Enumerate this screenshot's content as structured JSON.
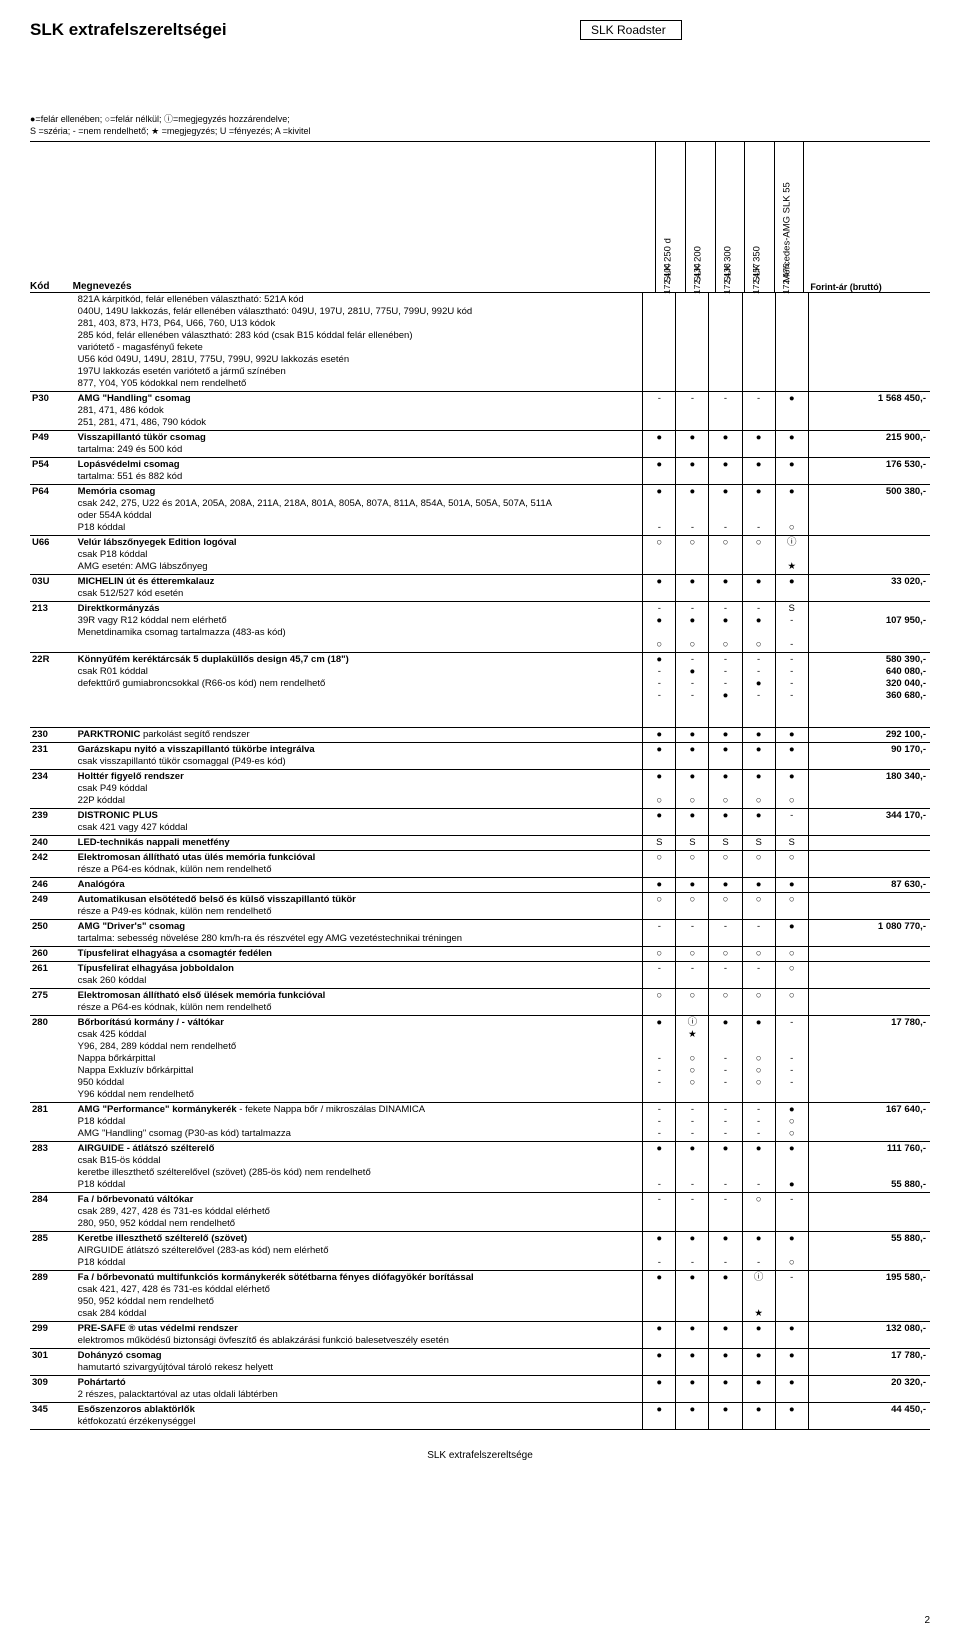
{
  "title": "SLK extrafelszereltségei",
  "model_box": "SLK Roadster",
  "legend": "●=felár ellenében;  ○=felár nélkül;  ⓘ=megjegyzés hozzárendelve;\nS =széria;  - =nem rendelhető;  ★ =megjegyzés;  U =fényezés;  A =kivitel",
  "columns": [
    {
      "code": "172.404",
      "name": "SLK 250 d"
    },
    {
      "code": "172.434",
      "name": "SLK 200"
    },
    {
      "code": "172.438",
      "name": "SLK 300"
    },
    {
      "code": "172.457",
      "name": "SLK 350"
    },
    {
      "code": "172.475",
      "name": "Mercedes-AMG SLK 55"
    }
  ],
  "price_header": "Forint-ár (bruttó)",
  "header_row": {
    "code": "Kód",
    "desc": "Megnevezés"
  },
  "footer": "SLK extrafelszereltsége",
  "page": "2",
  "rows": [
    {
      "code": "",
      "desc": "821A kárpitkód, felár ellenében választható: 521A kód\n040U, 149U lakkozás, felár ellenében választható: 049U, 197U, 281U, 775U, 799U, 992U kód\n281, 403, 873, H73, P64, U66, 760, U13 kódok\n285 kód, felár ellenében választható: 283 kód (csak B15 kóddal felár ellenében)\nvariótető - magasfényű fekete\nU56 kód  049U, 149U, 281U, 775U, 799U, 992U lakkozás esetén\n197U lakkozás esetén variótető a jármű színében\n877, Y04, Y05 kódokkal nem rendelhető",
      "sym": [
        [
          "",
          "",
          "",
          "",
          ""
        ]
      ],
      "price": ""
    },
    {
      "code": "P30",
      "desc": "<b>AMG \"Handling\" csomag</b>\n281, 471, 486 kódok\n251, 281, 471, 486, 790 kódok",
      "sym": [
        [
          "-",
          "-",
          "-",
          "-",
          "●"
        ]
      ],
      "price": "1 568 450,-"
    },
    {
      "code": "P49",
      "desc": "<b>Visszapillantó tükör csomag</b>\ntartalma: 249 és 500 kód",
      "sym": [
        [
          "●",
          "●",
          "●",
          "●",
          "●"
        ]
      ],
      "price": "215 900,-"
    },
    {
      "code": "P54",
      "desc": "<b>Lopásvédelmi csomag</b>\ntartalma: 551 és 882 kód",
      "sym": [
        [
          "●",
          "●",
          "●",
          "●",
          "●"
        ]
      ],
      "price": "176 530,-"
    },
    {
      "code": "P64",
      "desc": "<b>Memória csomag</b>\ncsak 242, 275, U22 és 201A, 205A, 208A, 211A, 218A, 801A, 805A, 807A, 811A, 854A, 501A, 505A, 507A, 511A\noder 554A kóddal\nP18 kóddal",
      "sym": [
        [
          "●",
          "●",
          "●",
          "●",
          "●"
        ],
        [
          "",
          "",
          "",
          "",
          ""
        ],
        [
          "",
          "",
          "",
          "",
          ""
        ],
        [
          "-",
          "-",
          "-",
          "-",
          "○"
        ]
      ],
      "price": "500 380,-"
    },
    {
      "code": "U66",
      "desc": "<b>Velúr lábszőnyegek Edition logóval</b>\ncsak P18 kóddal\nAMG esetén: AMG lábszőnyeg",
      "sym": [
        [
          "○",
          "○",
          "○",
          "○",
          "ⓘ"
        ],
        [
          "",
          "",
          "",
          "",
          ""
        ],
        [
          "",
          "",
          "",
          "",
          "★"
        ]
      ],
      "price": ""
    },
    {
      "code": "03U",
      "desc": "<b>MICHELIN út és étteremkalauz</b>\ncsak 512/527 kód esetén",
      "sym": [
        [
          "●",
          "●",
          "●",
          "●",
          "●"
        ]
      ],
      "price": "33 020,-"
    },
    {
      "code": "213",
      "desc": "<b>Direktkormányzás</b>\n\n39R vagy R12 kóddal nem elérhető\nMenetdinamika csomag tartalmazza (483-as kód)",
      "sym": [
        [
          "-",
          "-",
          "-",
          "-",
          "S"
        ],
        [
          "●",
          "●",
          "●",
          "●",
          "-"
        ],
        [
          "",
          "",
          "",
          "",
          ""
        ],
        [
          "○",
          "○",
          "○",
          "○",
          "-"
        ]
      ],
      "price": "\n107 950,-"
    },
    {
      "code": "22R",
      "desc": "<b>Könnyűfém keréktárcsák 5 duplaküllős design 45,7 cm (18\")</b>\n\n\n\ncsak R01 kóddal\ndefekttűrő gumiabroncsokkal (R66-os kód) nem rendelhető",
      "sym": [
        [
          "●",
          "-",
          "-",
          "-",
          "-"
        ],
        [
          "-",
          "●",
          "-",
          "-",
          "-"
        ],
        [
          "-",
          "-",
          "-",
          "●",
          "-"
        ],
        [
          "-",
          "-",
          "●",
          "-",
          "-"
        ]
      ],
      "price": "580 390,-\n640 080,-\n320 040,-\n360 680,-"
    },
    {
      "code": "230",
      "desc": "<b>PARKTRONIC</b> parkolást segítő rendszer",
      "sym": [
        [
          "●",
          "●",
          "●",
          "●",
          "●"
        ]
      ],
      "price": "292 100,-"
    },
    {
      "code": "231",
      "desc": "<b>Garázskapu nyitó a visszapillantó tükörbe integrálva</b>\ncsak visszapillantó tükör csomaggal (P49-es kód)",
      "sym": [
        [
          "●",
          "●",
          "●",
          "●",
          "●"
        ]
      ],
      "price": "90 170,-"
    },
    {
      "code": "234",
      "desc": "<b>Holttér figyelő rendszer</b>\ncsak P49 kóddal\n22P kóddal",
      "sym": [
        [
          "●",
          "●",
          "●",
          "●",
          "●"
        ],
        [
          "",
          "",
          "",
          "",
          ""
        ],
        [
          "○",
          "○",
          "○",
          "○",
          "○"
        ]
      ],
      "price": "180 340,-"
    },
    {
      "code": "239",
      "desc": "<b>DISTRONIC PLUS</b>\ncsak 421 vagy 427 kóddal",
      "sym": [
        [
          "●",
          "●",
          "●",
          "●",
          "-"
        ]
      ],
      "price": "344 170,-"
    },
    {
      "code": "240",
      "desc": "<b>LED-technikás nappali menetfény</b>",
      "sym": [
        [
          "S",
          "S",
          "S",
          "S",
          "S"
        ]
      ],
      "price": ""
    },
    {
      "code": "242",
      "desc": "<b>Elektromosan állítható utas ülés memória funkcióval</b>\nrésze a P64-es kódnak, külön nem rendelhető",
      "sym": [
        [
          "○",
          "○",
          "○",
          "○",
          "○"
        ]
      ],
      "price": ""
    },
    {
      "code": "246",
      "desc": "<b>Analógóra</b>",
      "sym": [
        [
          "●",
          "●",
          "●",
          "●",
          "●"
        ]
      ],
      "price": "87 630,-"
    },
    {
      "code": "249",
      "desc": "<b>Automatikusan elsötétedő belső és külső visszapillantó tükör</b>\nrésze a P49-es kódnak, külön nem rendelhető",
      "sym": [
        [
          "○",
          "○",
          "○",
          "○",
          "○"
        ]
      ],
      "price": ""
    },
    {
      "code": "250",
      "desc": "<b>AMG \"Driver's\" csomag</b>\ntartalma: sebesség növelése 280 km/h-ra és részvétel egy AMG vezetéstechnikai tréningen",
      "sym": [
        [
          "-",
          "-",
          "-",
          "-",
          "●"
        ]
      ],
      "price": "1 080 770,-"
    },
    {
      "code": "260",
      "desc": "<b>Típusfelirat elhagyása a csomagtér fedélen</b>",
      "sym": [
        [
          "○",
          "○",
          "○",
          "○",
          "○"
        ]
      ],
      "price": ""
    },
    {
      "code": "261",
      "desc": "<b>Típusfelirat elhagyása jobboldalon</b>\ncsak 260 kóddal",
      "sym": [
        [
          "-",
          "-",
          "-",
          "-",
          "○"
        ]
      ],
      "price": ""
    },
    {
      "code": "275",
      "desc": "<b>Elektromosan állítható első ülések memória funkcióval</b>\nrésze a P64-es kódnak, külön nem rendelhető",
      "sym": [
        [
          "○",
          "○",
          "○",
          "○",
          "○"
        ]
      ],
      "price": ""
    },
    {
      "code": "280",
      "desc": "<b>Bőrborítású kormány / - váltókar</b>\ncsak 425 kóddal\nY96, 284, 289 kóddal nem rendelhető\nNappa bőrkárpittal\nNappa Exkluzív bőrkárpittal\n950 kóddal\nY96 kóddal nem rendelhető",
      "sym": [
        [
          "●",
          "ⓘ",
          "●",
          "●",
          "-"
        ],
        [
          "",
          "★",
          "",
          "",
          ""
        ],
        [
          "",
          "",
          "",
          "",
          ""
        ],
        [
          "-",
          "○",
          "-",
          "○",
          "-"
        ],
        [
          "-",
          "○",
          "-",
          "○",
          "-"
        ],
        [
          "-",
          "○",
          "-",
          "○",
          "-"
        ]
      ],
      "price": "17 780,-"
    },
    {
      "code": "281",
      "desc": "<b>AMG \"Performance\" kormánykerék</b> - fekete Nappa bőr / mikroszálas DINAMICA\nP18 kóddal\nAMG \"Handling\" csomag (P30-as kód) tartalmazza",
      "sym": [
        [
          "-",
          "-",
          "-",
          "-",
          "●"
        ],
        [
          "-",
          "-",
          "-",
          "-",
          "○"
        ],
        [
          "-",
          "-",
          "-",
          "-",
          "○"
        ]
      ],
      "price": "167 640,-"
    },
    {
      "code": "283",
      "desc": "<b>AIRGUIDE - átlátszó szélterelő</b>\ncsak B15-ös kóddal\nkeretbe illeszthető szélterelővel (szövet) (285-ös kód) nem rendelhető\nP18 kóddal",
      "sym": [
        [
          "●",
          "●",
          "●",
          "●",
          "●"
        ],
        [
          "",
          "",
          "",
          "",
          ""
        ],
        [
          "",
          "",
          "",
          "",
          ""
        ],
        [
          "-",
          "-",
          "-",
          "-",
          "●"
        ]
      ],
      "price": "111 760,-\n\n\n55 880,-"
    },
    {
      "code": "284",
      "desc": "<b>Fa / bőrbevonatú váltókar</b>\ncsak 289, 427, 428 és 731-es kóddal elérhető\n280, 950, 952 kóddal nem rendelhető",
      "sym": [
        [
          "-",
          "-",
          "-",
          "○",
          "-"
        ]
      ],
      "price": ""
    },
    {
      "code": "285",
      "desc": "<b>Keretbe illeszthető szélterelő (szövet)</b>\nAIRGUIDE átlátszó szélterelővel (283-as kód) nem elérhető\nP18 kóddal",
      "sym": [
        [
          "●",
          "●",
          "●",
          "●",
          "●"
        ],
        [
          "",
          "",
          "",
          "",
          ""
        ],
        [
          "-",
          "-",
          "-",
          "-",
          "○"
        ]
      ],
      "price": "55 880,-"
    },
    {
      "code": "289",
      "desc": "<b>Fa / bőrbevonatú multifunkciós kormánykerék sötétbarna fényes diófagyökér borítással</b>\ncsak 421, 427, 428 és 731-es kóddal elérhető\n950, 952 kóddal nem rendelhető\ncsak 284 kóddal",
      "sym": [
        [
          "●",
          "●",
          "●",
          "ⓘ",
          "-"
        ],
        [
          "",
          "",
          "",
          "",
          ""
        ],
        [
          "",
          "",
          "",
          "",
          ""
        ],
        [
          "",
          "",
          "",
          "★",
          ""
        ]
      ],
      "price": "195 580,-"
    },
    {
      "code": "299",
      "desc": "<b>PRE-SAFE ® utas védelmi rendszer</b>\nelektromos működésű biztonsági övfeszítő és ablakzárási funkció balesetveszély esetén",
      "sym": [
        [
          "●",
          "●",
          "●",
          "●",
          "●"
        ]
      ],
      "price": "132 080,-"
    },
    {
      "code": "301",
      "desc": "<b>Dohányzó csomag</b>\nhamutartó szivargyújtóval tároló rekesz helyett",
      "sym": [
        [
          "●",
          "●",
          "●",
          "●",
          "●"
        ]
      ],
      "price": "17 780,-"
    },
    {
      "code": "309",
      "desc": "<b>Pohártartó</b>\n2 részes, palacktartóval az utas oldali lábtérben",
      "sym": [
        [
          "●",
          "●",
          "●",
          "●",
          "●"
        ]
      ],
      "price": "20 320,-"
    },
    {
      "code": "345",
      "desc": "<b>Esőszenzoros ablaktörlők</b>\nkétfokozatú érzékenységgel",
      "sym": [
        [
          "●",
          "●",
          "●",
          "●",
          "●"
        ]
      ],
      "price": "44 450,-"
    }
  ]
}
